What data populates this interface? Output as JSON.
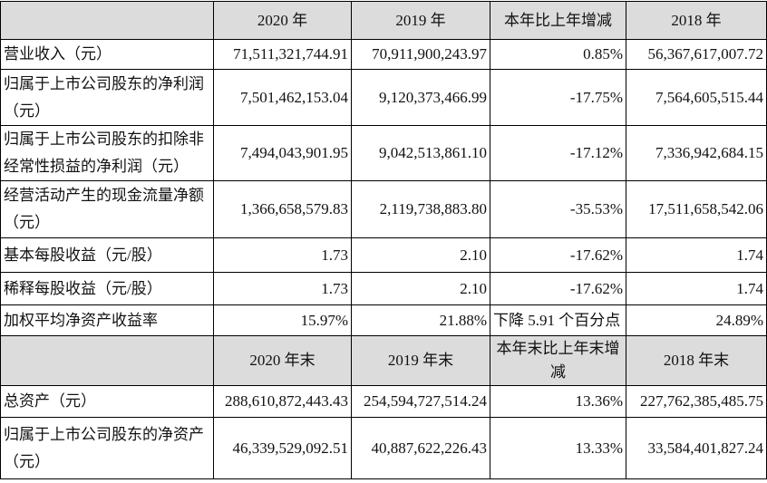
{
  "table": {
    "header": [
      "",
      "2020 年",
      "2019 年",
      "本年比上年增减",
      "2018 年"
    ],
    "rows": [
      [
        "营业收入（元）",
        "71,511,321,744.91",
        "70,911,900,243.97",
        "0.85%",
        "56,367,617,007.72"
      ],
      [
        "归属于上市公司股东的净利润（元）",
        "7,501,462,153.04",
        "9,120,373,466.99",
        "-17.75%",
        "7,564,605,515.44"
      ],
      [
        "归属于上市公司股东的扣除非经常性损益的净利润（元）",
        "7,494,043,901.95",
        "9,042,513,861.10",
        "-17.12%",
        "7,336,942,684.15"
      ],
      [
        "经营活动产生的现金流量净额（元）",
        "1,366,658,579.83",
        "2,119,738,883.80",
        "-35.53%",
        "17,511,658,542.06"
      ],
      [
        "基本每股收益（元/股）",
        "1.73",
        "2.10",
        "-17.62%",
        "1.74"
      ],
      [
        "稀释每股收益（元/股）",
        "1.73",
        "2.10",
        "-17.62%",
        "1.74"
      ],
      [
        "加权平均净资产收益率",
        "15.97%",
        "21.88%",
        "下降 5.91 个百分点",
        "24.89%"
      ]
    ]
  },
  "table2": {
    "header": [
      "",
      "2020 年末",
      "2019 年末",
      "本年末比上年末增减",
      "2018 年末"
    ],
    "rows": [
      [
        "总资产（元）",
        "288,610,872,443.43",
        "254,594,727,514.24",
        "13.36%",
        "227,762,385,485.75"
      ],
      [
        "归属于上市公司股东的净资产（元）",
        "46,339,529,092.51",
        "40,887,622,226.43",
        "13.33%",
        "33,584,401,827.24"
      ]
    ]
  }
}
